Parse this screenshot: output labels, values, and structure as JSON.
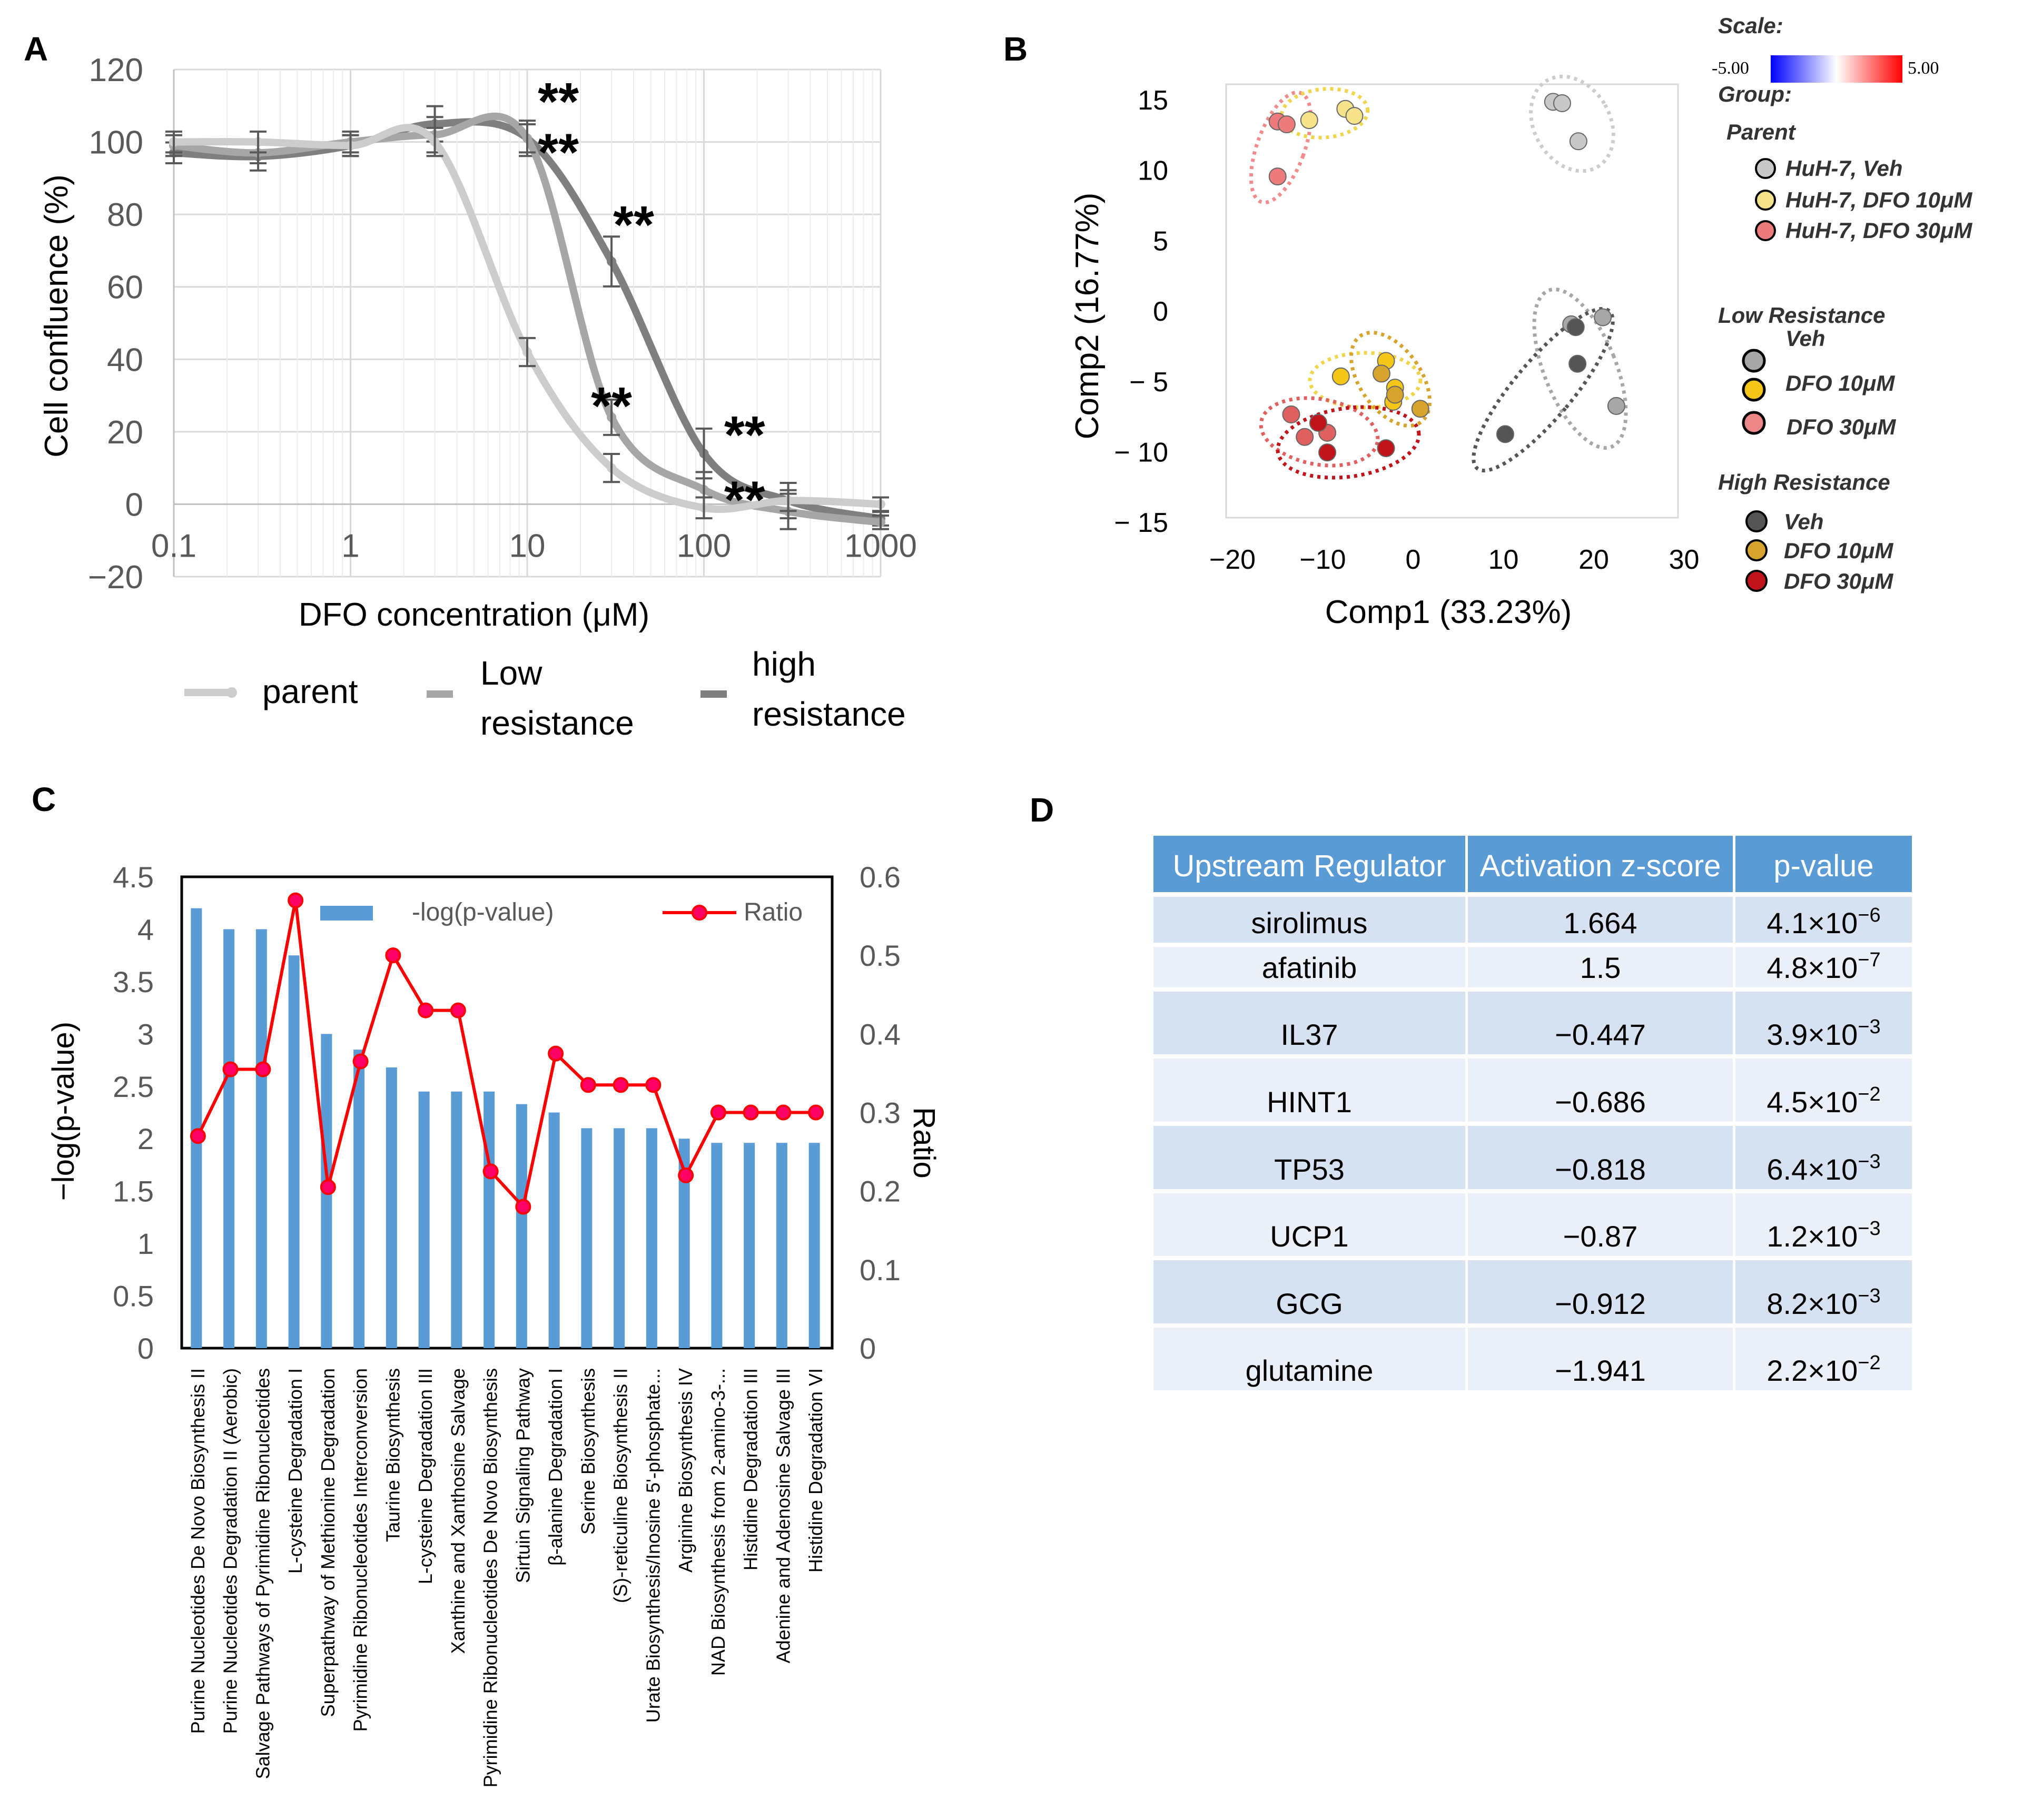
{
  "panels": {
    "A": {
      "letter": "A",
      "chart_data": {
        "type": "line",
        "title": "",
        "xlabel": "DFO concentration (μM)",
        "ylabel": "Cell confluence (%)",
        "xscale": "log",
        "xlim": [
          0.1,
          1000
        ],
        "ylim": [
          -20,
          120
        ],
        "xticks": [
          "0.1",
          "1",
          "10",
          "100",
          "1000"
        ],
        "yticks": [
          "−20",
          "0",
          "20",
          "40",
          "60",
          "80",
          "100",
          "120"
        ],
        "grid": true,
        "legend": "bottom",
        "series": [
          {
            "name": "parent",
            "color": "#cccccc",
            "x": [
              0.1,
              0.3,
              1,
              3,
              10,
              30,
              100,
              300,
              1000
            ],
            "y": [
              100,
              100,
              99,
              100,
              42,
              10,
              -1,
              1,
              0
            ],
            "err": [
              2,
              2,
              2,
              3,
              3,
              3,
              2,
              2,
              1
            ]
          },
          {
            "name": "Low resistance",
            "color": "#a6a6a6",
            "x": [
              0.1,
              0.3,
              1,
              3,
              10,
              30,
              100,
              300,
              1000
            ],
            "y": [
              99,
              97,
              100,
              102,
              101,
              24,
              4,
              -2,
              -5
            ],
            "err": [
              2,
              2,
              2,
              4,
              3,
              4,
              4,
              4,
              1
            ]
          },
          {
            "name": "high resistance",
            "color": "#7f7f7f",
            "x": [
              0.1,
              0.3,
              1,
              3,
              10,
              30,
              100,
              300,
              1000
            ],
            "y": [
              97,
              96,
              99,
              105,
              101,
              67,
              14,
              1,
              -4
            ],
            "err": [
              2,
              3,
              2,
              4,
              4,
              6,
              6,
              4,
              1
            ]
          }
        ],
        "annotations": [
          {
            "text": "**",
            "x": 15,
            "y": 112
          },
          {
            "text": "**",
            "x": 15,
            "y": 98
          },
          {
            "text": "**",
            "x": 40,
            "y": 78
          },
          {
            "text": "**",
            "x": 30,
            "y": 28
          },
          {
            "text": "**",
            "x": 170,
            "y": 20
          },
          {
            "text": "**",
            "x": 170,
            "y": 2
          }
        ]
      },
      "legend_labels": {
        "parent": "parent",
        "low_1": "Low",
        "low_2": "resistance",
        "high_1": "high",
        "high_2": "resistance"
      }
    },
    "B": {
      "letter": "B",
      "chart_data": {
        "type": "scatter",
        "xlabel": "Comp1 (33.23%)",
        "ylabel": "Comp2 (16.77%)",
        "xlim": [
          -20,
          30
        ],
        "ylim": [
          -15,
          15
        ],
        "xticks": [
          "−20",
          "−10",
          "0",
          "10",
          "20",
          "30"
        ],
        "yticks": [
          "15",
          "10",
          "5",
          "0",
          "− 5",
          "− 10",
          "− 15"
        ],
        "series": [
          {
            "name": "HuH-7, Veh",
            "color": "#c8c8c8",
            "x": [
              15.5,
              16.5,
              18.3
            ],
            "y": [
              14.8,
              14.7,
              12.0
            ]
          },
          {
            "name": "HuH-7, DFO 10μM",
            "color": "#f5e28a",
            "x": [
              -11.5,
              -7.5,
              -6.5
            ],
            "y": [
              13.5,
              14.3,
              13.8
            ]
          },
          {
            "name": "HuH-7, DFO 30μM",
            "color": "#ee7b7b",
            "x": [
              -15,
              -14,
              -15
            ],
            "y": [
              13.4,
              13.2,
              9.5
            ]
          },
          {
            "name": "Low Resistance Veh",
            "color": "#a7a7a7",
            "x": [
              21,
              22.5,
              17.5
            ],
            "y": [
              -0.5,
              -6.8,
              -1.0
            ]
          },
          {
            "name": "Low Resistance DFO 10μM",
            "color": "#f5c518",
            "x": [
              -8,
              -3,
              -2,
              -2.2
            ],
            "y": [
              -4.7,
              -3.6,
              -5.5,
              -6.5
            ]
          },
          {
            "name": "Low Resistance DFO 30μM",
            "color": "#e06060",
            "x": [
              -13.5,
              -12,
              -9.5
            ],
            "y": [
              -7.4,
              -9.0,
              -8.7
            ]
          },
          {
            "name": "High Resistance Veh",
            "color": "#555555",
            "x": [
              10.2,
              18,
              18.2
            ],
            "y": [
              -8.8,
              -1.2,
              -3.8
            ]
          },
          {
            "name": "High Resistance DFO 10μM",
            "color": "#d6a42c",
            "x": [
              -3.5,
              0.8,
              -2
            ],
            "y": [
              -4.5,
              -7.0,
              -6.0
            ]
          },
          {
            "name": "High Resistance DFO 30μM",
            "color": "#c0141a",
            "x": [
              -10.5,
              -9.5,
              -3
            ],
            "y": [
              -8.0,
              -10.1,
              -9.8
            ]
          }
        ]
      },
      "legend": {
        "scale_title": "Scale:",
        "scale_min": "-5.00",
        "scale_max": "5.00",
        "group_title": "Group:",
        "parent_title": "Parent",
        "parent_items": [
          "HuH-7, Veh",
          "HuH-7, DFO 10μM",
          "HuH-7, DFO 30μM"
        ],
        "low_title_1": "Low Resistance",
        "low_title_2": "Veh",
        "low_items": [
          "DFO 10μM",
          "DFO 30μM"
        ],
        "high_title": "High Resistance",
        "high_items": [
          "Veh",
          "DFO 10μM",
          "DFO 30μM"
        ]
      }
    },
    "C": {
      "letter": "C",
      "chart_data": {
        "type": "bar",
        "ylabel": "−log(p-value)",
        "y2label": "Ratio",
        "ylim": [
          0,
          4.5
        ],
        "y2lim": [
          0,
          0.6
        ],
        "yticks": [
          "0",
          "0.5",
          "1",
          "1.5",
          "2",
          "2.5",
          "3",
          "3.5",
          "4",
          "4.5"
        ],
        "y2ticks": [
          "0",
          "0.1",
          "0.2",
          "0.3",
          "0.4",
          "0.5",
          "0.6"
        ],
        "legend": [
          "-log(p-value)",
          "Ratio"
        ],
        "categories": [
          "Purine Nucleotides De Novo Biosynthesis II",
          "Purine Nucleotides Degradation II (Aerobic)",
          "Salvage Pathways of Pyrimidine Ribonucleotides",
          "L-cysteine Degradation I",
          "Superpathway of Methionine Degradation",
          "Pyrimidine Ribonucleotides Interconversion",
          "Taurine Biosynthesis",
          "L-cysteine Degradation III",
          "Xanthine and Xanthosine Salvage",
          "Pyrimidine Ribonucleotides De Novo Biosynthesis",
          "Sirtuin Signaling Pathway",
          "β-alanine Degradation I",
          "Serine Biosynthesis",
          "(S)-reticuline Biosynthesis II",
          "Urate Biosynthesis/Inosine 5'-phosphate...",
          "Arginine Biosynthesis IV",
          "NAD Biosynthesis from 2-amino-3-...",
          "Histidine Degradation III",
          "Adenine and Adenosine Salvage III",
          "Histidine Degradation VI"
        ],
        "series": [
          {
            "name": "-log(p-value)",
            "axis": "left",
            "color": "#5b9bd5",
            "values": [
              4.2,
              4.0,
              4.0,
              3.75,
              3.0,
              2.85,
              2.68,
              2.45,
              2.45,
              2.45,
              2.33,
              2.25,
              2.1,
              2.1,
              2.1,
              2.0,
              1.96,
              1.96,
              1.96,
              1.96
            ]
          },
          {
            "name": "Ratio",
            "axis": "right",
            "color": "#ff0000",
            "values": [
              0.27,
              0.355,
              0.355,
              0.57,
              0.205,
              0.365,
              0.5,
              0.43,
              0.43,
              0.225,
              0.18,
              0.375,
              0.335,
              0.335,
              0.335,
              0.22,
              0.3,
              0.3,
              0.3,
              0.3
            ]
          }
        ]
      }
    },
    "D": {
      "letter": "D",
      "table": {
        "headers": [
          "Upstream Regulator",
          "Activation z-score",
          "p-value"
        ],
        "rows": [
          {
            "regulator": "sirolimus",
            "z": "1.664",
            "p_base": "4.1×10",
            "p_exp": "−6"
          },
          {
            "regulator": "afatinib",
            "z": "1.5",
            "p_base": "4.8×10",
            "p_exp": "−7"
          },
          {
            "regulator": "IL37",
            "z": "−0.447",
            "p_base": "3.9×10",
            "p_exp": "−3"
          },
          {
            "regulator": "HINT1",
            "z": "−0.686",
            "p_base": "4.5×10",
            "p_exp": "−2"
          },
          {
            "regulator": "TP53",
            "z": "−0.818",
            "p_base": "6.4×10",
            "p_exp": "−3"
          },
          {
            "regulator": "UCP1",
            "z": "−0.87",
            "p_base": "1.2×10",
            "p_exp": "−3"
          },
          {
            "regulator": "GCG",
            "z": "−0.912",
            "p_base": "8.2×10",
            "p_exp": "−3"
          },
          {
            "regulator": "glutamine",
            "z": "−1.941",
            "p_base": "2.2×10",
            "p_exp": "−2"
          }
        ]
      }
    }
  }
}
